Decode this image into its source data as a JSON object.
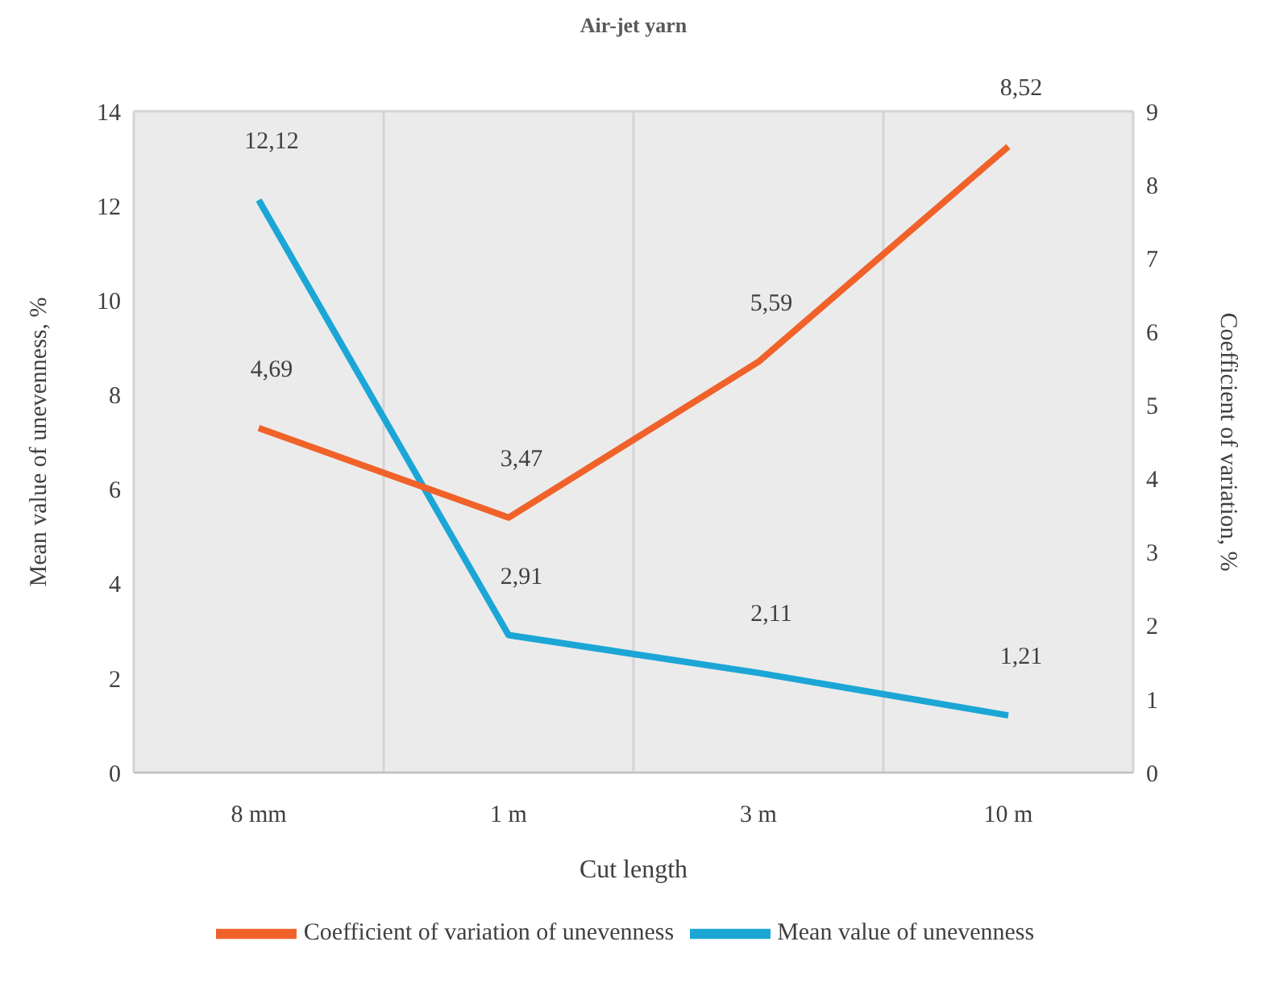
{
  "chart_data": {
    "type": "line",
    "title": "Air-jet yarn",
    "xlabel": "Cut length",
    "ylabel": "Mean value of unevenness, %",
    "y2label": "Coefficient of variation, %",
    "categories": [
      "8 mm",
      "1 m",
      "3 m",
      "10 m"
    ],
    "series": [
      {
        "name": "Mean value of unevenness",
        "color": "#1ba6d6",
        "values": [
          12.12,
          2.91,
          2.11,
          1.21
        ],
        "value_labels": [
          "12,12",
          "2,91",
          "2,11",
          "1,21"
        ]
      },
      {
        "name": "Coefficient of variation of unevenness",
        "color": "#f0622a",
        "axis": "y2",
        "values": [
          4.69,
          3.47,
          5.59,
          8.52
        ],
        "value_labels": [
          "4,69",
          "3,47",
          "5,59",
          "8,52"
        ]
      }
    ],
    "ylim": [
      0,
      14
    ],
    "yticks": [
      0,
      2,
      4,
      6,
      8,
      10,
      12,
      14
    ],
    "y2lim": [
      0,
      9
    ],
    "y2ticks": [
      0,
      1,
      2,
      3,
      4,
      5,
      6,
      7,
      8,
      9
    ],
    "grid": true,
    "legend": "bottom",
    "marker": "none",
    "line_style": "solid"
  }
}
